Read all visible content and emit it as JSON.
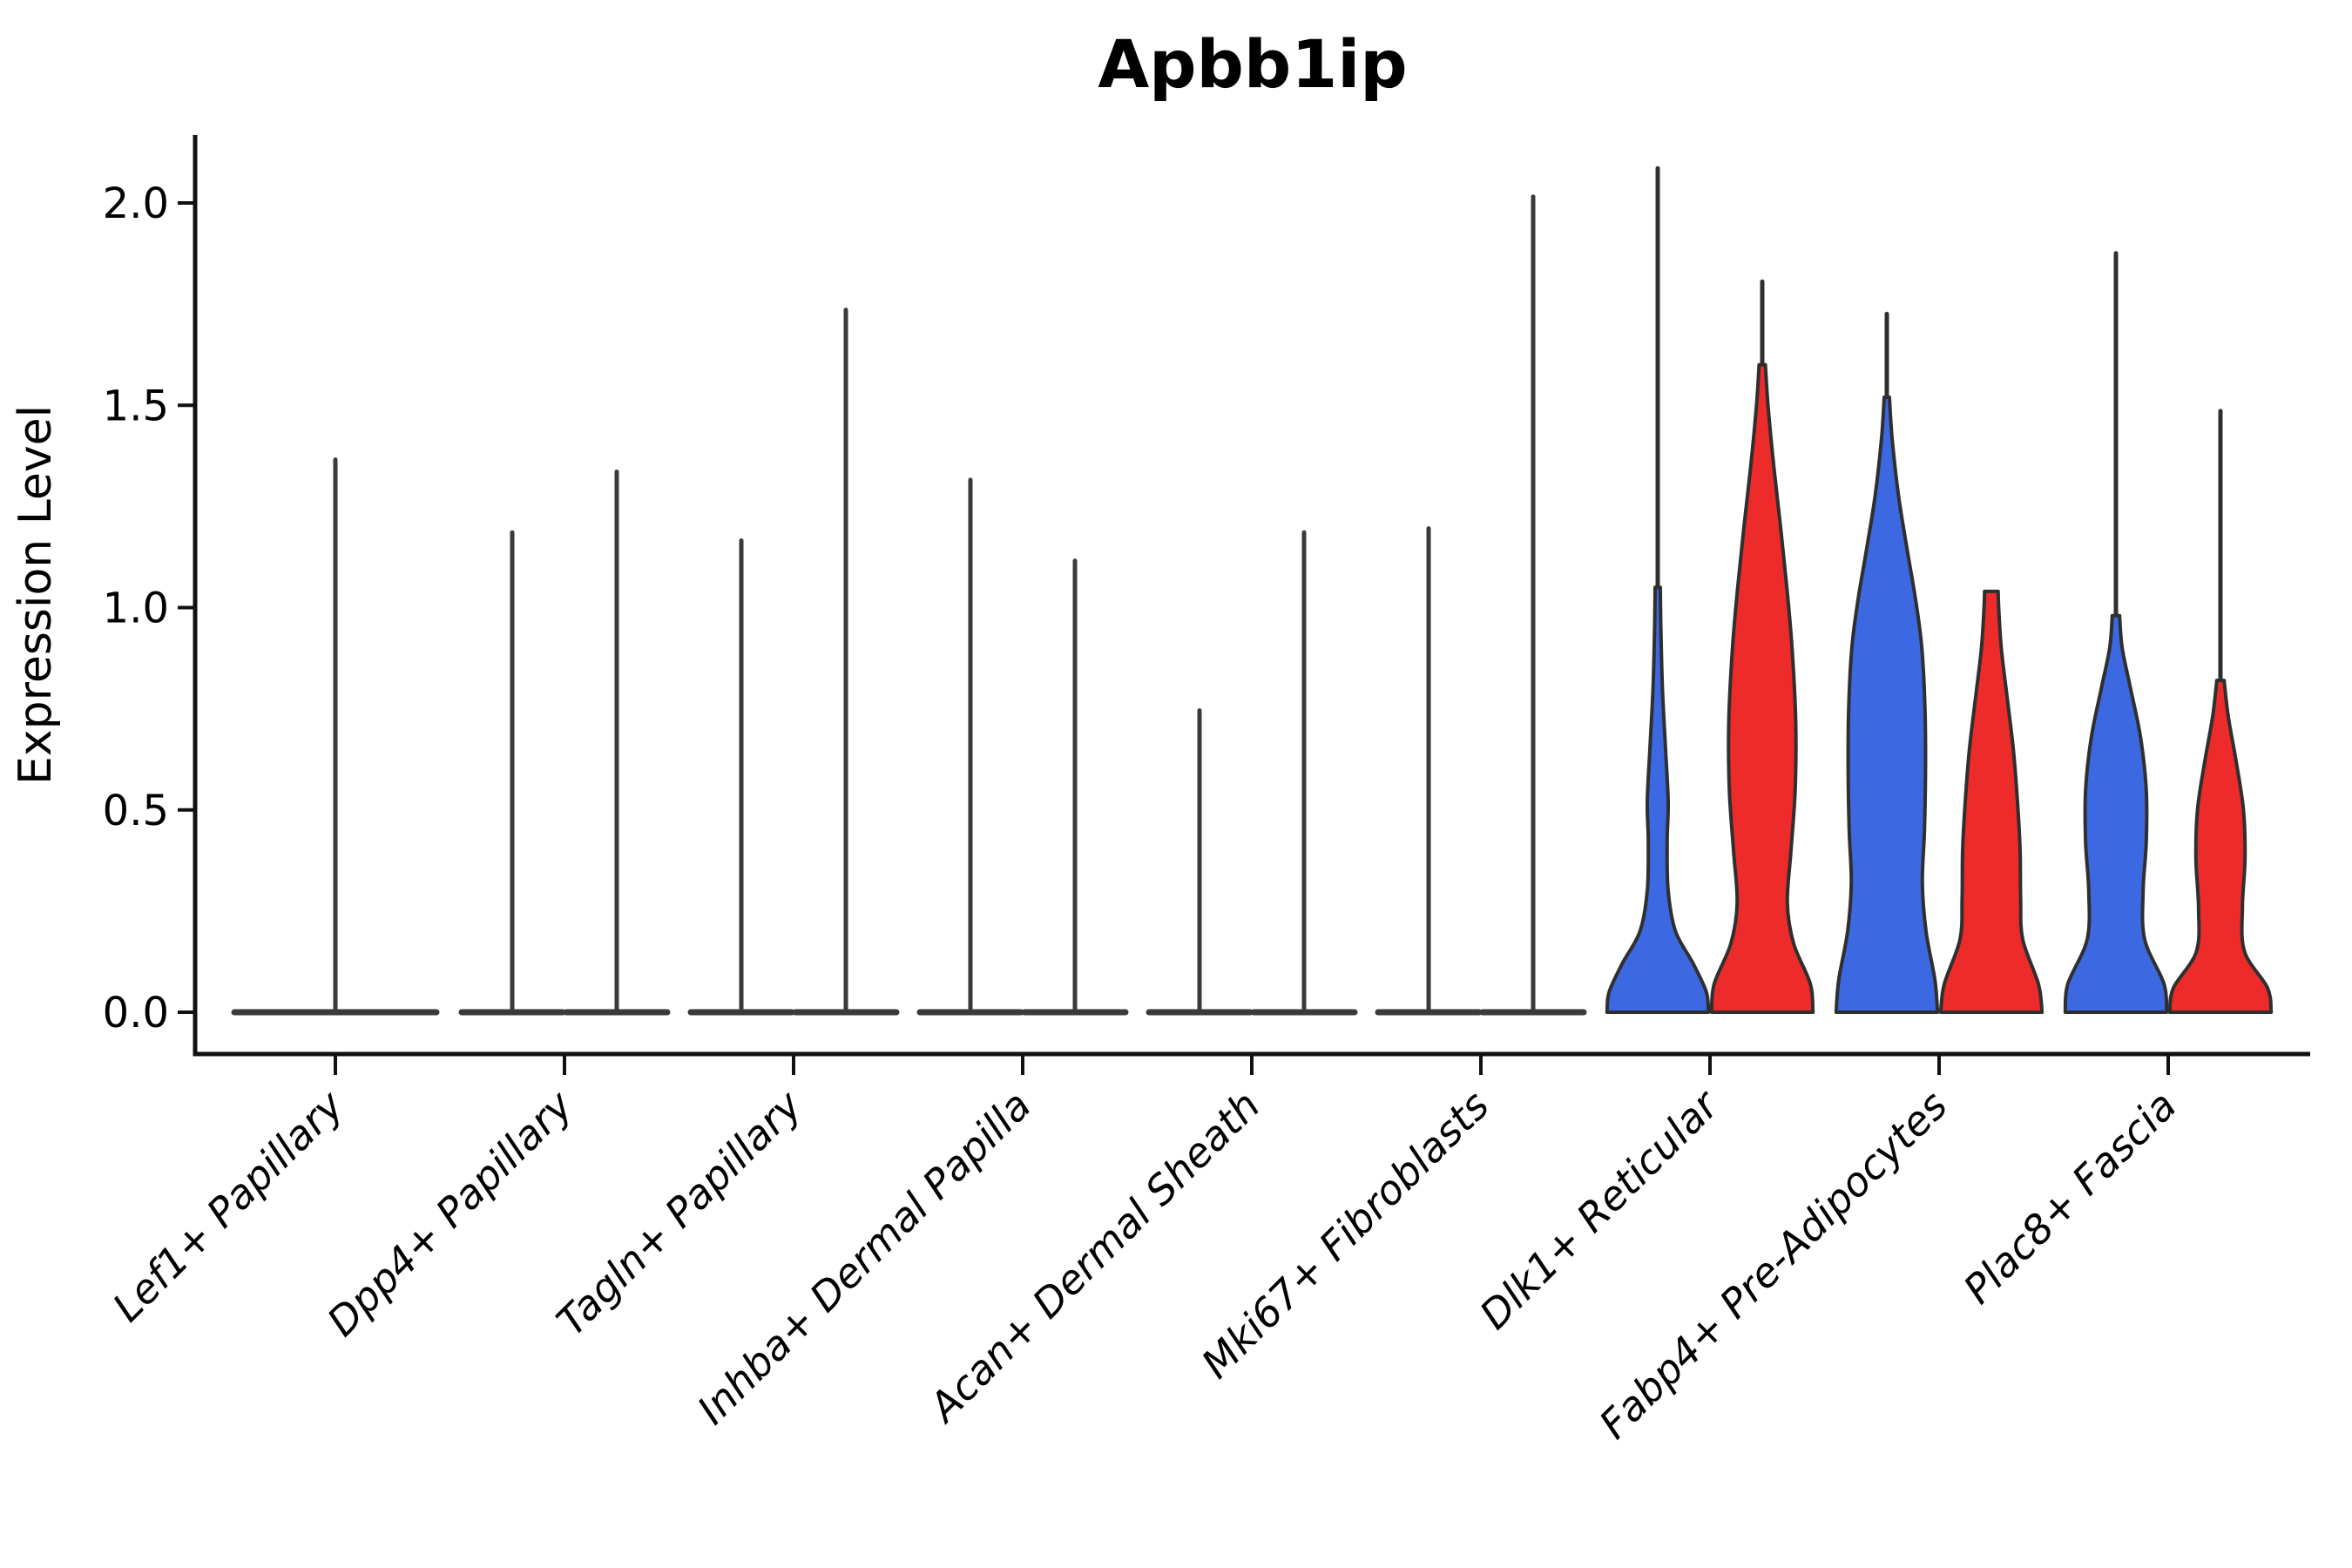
{
  "chart_data": {
    "type": "violin",
    "title": "Apbb1ip",
    "ylabel": "Expression Level",
    "xlabel": "",
    "yticks": [
      0.0,
      0.5,
      1.0,
      1.5,
      2.0
    ],
    "ylim": [
      0.0,
      2.17
    ],
    "grid": false,
    "legend_position": "none",
    "x_tick_rotation": 45,
    "colors": {
      "group_left_fill": "#3C69E1",
      "group_right_fill": "#EE2B2B",
      "outline": "#2F2F2F",
      "flat_line": "#3A3A3A",
      "axis": "#111111"
    },
    "categories": [
      "Lef1+ Papillary",
      "Dpp4+ Papillary",
      "Tagln+ Papillary",
      "Inhba+ Dermal Papilla",
      "Acan+ Dermal Sheath",
      "Mki67+ Fibroblasts",
      "Dlk1+ Reticular",
      "Fabp4+ Pre-Adipocytes",
      "Plac8+ Fascia"
    ],
    "violins": [
      {
        "category": "Lef1+ Papillary",
        "items": [
          {
            "group": "single",
            "kind": "flat",
            "max_value": 1.37,
            "fill": "none"
          }
        ]
      },
      {
        "category": "Dpp4+ Papillary",
        "items": [
          {
            "group": "left",
            "kind": "flat",
            "max_value": 1.19,
            "fill": "none"
          },
          {
            "group": "right",
            "kind": "flat",
            "max_value": 1.34,
            "fill": "none"
          }
        ]
      },
      {
        "category": "Tagln+ Papillary",
        "items": [
          {
            "group": "left",
            "kind": "flat",
            "max_value": 1.17,
            "fill": "none"
          },
          {
            "group": "right",
            "kind": "flat",
            "max_value": 1.74,
            "fill": "none"
          }
        ]
      },
      {
        "category": "Inhba+ Dermal Papilla",
        "items": [
          {
            "group": "left",
            "kind": "flat",
            "max_value": 1.32,
            "fill": "none"
          },
          {
            "group": "right",
            "kind": "flat",
            "max_value": 1.12,
            "fill": "none"
          }
        ]
      },
      {
        "category": "Acan+ Dermal Sheath",
        "items": [
          {
            "group": "left",
            "kind": "flat",
            "max_value": 0.75,
            "fill": "none"
          },
          {
            "group": "right",
            "kind": "flat",
            "max_value": 1.19,
            "fill": "none"
          }
        ]
      },
      {
        "category": "Mki67+ Fibroblasts",
        "items": [
          {
            "group": "left",
            "kind": "flat",
            "max_value": 1.2,
            "fill": "none"
          },
          {
            "group": "right",
            "kind": "flat",
            "max_value": 2.02,
            "fill": "none"
          }
        ]
      },
      {
        "category": "Dlk1+ Reticular",
        "items": [
          {
            "group": "left",
            "kind": "shaped",
            "max_value": 2.09,
            "fill": "blue",
            "profile": [
              [
                0,
                0.97
              ],
              [
                0.05,
                0.93
              ],
              [
                0.12,
                0.68
              ],
              [
                0.2,
                0.34
              ],
              [
                0.3,
                0.2
              ],
              [
                0.42,
                0.18
              ],
              [
                0.52,
                0.2
              ],
              [
                0.65,
                0.15
              ],
              [
                0.8,
                0.09
              ],
              [
                0.95,
                0.06
              ],
              [
                1.05,
                0.05
              ]
            ]
          },
          {
            "group": "right",
            "kind": "shaped",
            "max_value": 1.81,
            "fill": "red",
            "profile": [
              [
                0,
                0.97
              ],
              [
                0.07,
                0.92
              ],
              [
                0.17,
                0.6
              ],
              [
                0.27,
                0.48
              ],
              [
                0.4,
                0.55
              ],
              [
                0.55,
                0.63
              ],
              [
                0.72,
                0.64
              ],
              [
                0.9,
                0.57
              ],
              [
                1.05,
                0.47
              ],
              [
                1.2,
                0.35
              ],
              [
                1.35,
                0.22
              ],
              [
                1.5,
                0.11
              ],
              [
                1.6,
                0.06
              ]
            ]
          }
        ]
      },
      {
        "category": "Fabp4+ Pre-Adipocytes",
        "items": [
          {
            "group": "left",
            "kind": "shaped",
            "max_value": 1.73,
            "fill": "blue",
            "profile": [
              [
                0,
                0.97
              ],
              [
                0.08,
                0.92
              ],
              [
                0.2,
                0.75
              ],
              [
                0.32,
                0.68
              ],
              [
                0.45,
                0.72
              ],
              [
                0.6,
                0.74
              ],
              [
                0.75,
                0.73
              ],
              [
                0.9,
                0.67
              ],
              [
                1.02,
                0.55
              ],
              [
                1.15,
                0.38
              ],
              [
                1.28,
                0.22
              ],
              [
                1.42,
                0.1
              ],
              [
                1.52,
                0.05
              ]
            ]
          },
          {
            "group": "right",
            "kind": "truncated",
            "max_value": 1.04,
            "fill": "red",
            "profile": [
              [
                0,
                0.97
              ],
              [
                0.07,
                0.9
              ],
              [
                0.18,
                0.6
              ],
              [
                0.28,
                0.56
              ],
              [
                0.4,
                0.55
              ],
              [
                0.52,
                0.5
              ],
              [
                0.65,
                0.42
              ],
              [
                0.78,
                0.3
              ],
              [
                0.9,
                0.19
              ],
              [
                1.0,
                0.14
              ],
              [
                1.04,
                0.13
              ]
            ]
          }
        ]
      },
      {
        "category": "Plac8+ Fascia",
        "items": [
          {
            "group": "left",
            "kind": "shaped",
            "max_value": 1.88,
            "fill": "blue",
            "profile": [
              [
                0,
                0.97
              ],
              [
                0.07,
                0.92
              ],
              [
                0.18,
                0.55
              ],
              [
                0.3,
                0.52
              ],
              [
                0.42,
                0.58
              ],
              [
                0.55,
                0.58
              ],
              [
                0.68,
                0.47
              ],
              [
                0.8,
                0.28
              ],
              [
                0.9,
                0.12
              ],
              [
                0.98,
                0.07
              ]
            ]
          },
          {
            "group": "right",
            "kind": "shaped",
            "max_value": 1.49,
            "fill": "red",
            "profile": [
              [
                0,
                0.97
              ],
              [
                0.06,
                0.9
              ],
              [
                0.15,
                0.46
              ],
              [
                0.26,
                0.42
              ],
              [
                0.38,
                0.47
              ],
              [
                0.5,
                0.44
              ],
              [
                0.62,
                0.3
              ],
              [
                0.73,
                0.15
              ],
              [
                0.82,
                0.07
              ]
            ]
          }
        ]
      }
    ]
  }
}
